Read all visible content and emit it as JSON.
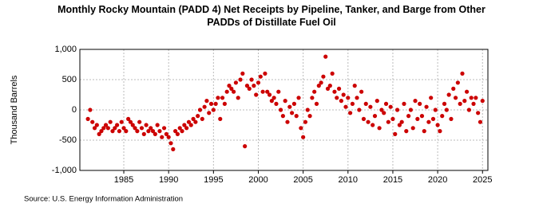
{
  "chart_data": {
    "type": "scatter",
    "title": "Monthly Rocky Mountain (PADD 4) Net Receipts by Pipeline, Tanker, and Barge from Other PADDs of Distillate Fuel Oil",
    "y_label": "Thousand Barrels",
    "source": "Source: U.S. Energy Information Administration",
    "xlim": [
      1980.1,
      2025.6
    ],
    "xticks": [
      1985,
      1990,
      1995,
      2000,
      2005,
      2010,
      2015,
      2020,
      2025
    ],
    "ylim": [
      -1000,
      1000
    ],
    "yticks": [
      {
        "value": 1000,
        "label": "1,000"
      },
      500,
      0,
      -500,
      {
        "value": -1000,
        "label": "-1,000"
      }
    ],
    "grid": true,
    "series": [
      {
        "color": "#cc0000",
        "x": [
          1981,
          1981.25,
          1981.5,
          1981.75,
          1982,
          1982.25,
          1982.5,
          1982.75,
          1983,
          1983.25,
          1983.5,
          1983.75,
          1984,
          1984.25,
          1984.5,
          1984.75,
          1985,
          1985.25,
          1985.5,
          1985.75,
          1986,
          1986.25,
          1986.5,
          1986.75,
          1987,
          1987.25,
          1987.5,
          1987.75,
          1988,
          1988.25,
          1988.5,
          1988.75,
          1989,
          1989.25,
          1989.5,
          1989.75,
          1990,
          1990.25,
          1990.5,
          1990.75,
          1991,
          1991.25,
          1991.5,
          1991.75,
          1992,
          1992.25,
          1992.5,
          1992.75,
          1993,
          1993.25,
          1993.5,
          1993.75,
          1994,
          1994.25,
          1994.5,
          1994.75,
          1995,
          1995.25,
          1995.5,
          1995.75,
          1996,
          1996.25,
          1996.5,
          1996.75,
          1997,
          1997.25,
          1997.5,
          1997.75,
          1998,
          1998.25,
          1998.5,
          1998.75,
          1999,
          1999.25,
          1999.5,
          1999.75,
          2000,
          2000.25,
          2000.5,
          2000.75,
          2001,
          2001.25,
          2001.5,
          2001.75,
          2002,
          2002.25,
          2002.5,
          2002.75,
          2003,
          2003.25,
          2003.5,
          2003.75,
          2004,
          2004.25,
          2004.5,
          2004.75,
          2005,
          2005.25,
          2005.5,
          2005.75,
          2006,
          2006.25,
          2006.5,
          2006.75,
          2007,
          2007.25,
          2007.5,
          2007.75,
          2008,
          2008.25,
          2008.5,
          2008.75,
          2009,
          2009.25,
          2009.5,
          2009.75,
          2010,
          2010.25,
          2010.5,
          2010.75,
          2011,
          2011.25,
          2011.5,
          2011.75,
          2012,
          2012.25,
          2012.5,
          2012.75,
          2013,
          2013.25,
          2013.5,
          2013.75,
          2014,
          2014.25,
          2014.5,
          2014.75,
          2015,
          2015.25,
          2015.5,
          2015.75,
          2016,
          2016.25,
          2016.5,
          2016.75,
          2017,
          2017.25,
          2017.5,
          2017.75,
          2018,
          2018.25,
          2018.5,
          2018.75,
          2019,
          2019.25,
          2019.5,
          2019.75,
          2020,
          2020.25,
          2020.5,
          2020.75,
          2021,
          2021.25,
          2021.5,
          2021.75,
          2022,
          2022.25,
          2022.5,
          2022.75,
          2023,
          2023.25,
          2023.5,
          2023.75,
          2024,
          2024.25,
          2024.5,
          2024.75,
          2025
        ],
        "values": [
          -150,
          0,
          -200,
          -300,
          -250,
          -400,
          -350,
          -300,
          -250,
          -300,
          -200,
          -350,
          -300,
          -250,
          -350,
          -200,
          -300,
          -350,
          -150,
          -200,
          -250,
          -300,
          -350,
          -200,
          -300,
          -400,
          -250,
          -350,
          -300,
          -350,
          -400,
          -250,
          -350,
          -450,
          -300,
          -400,
          -450,
          -550,
          -650,
          -350,
          -400,
          -300,
          -350,
          -250,
          -300,
          -200,
          -250,
          -150,
          -200,
          -100,
          0,
          -150,
          50,
          150,
          -50,
          100,
          0,
          100,
          200,
          -150,
          200,
          100,
          300,
          400,
          350,
          300,
          450,
          200,
          500,
          600,
          -600,
          400,
          350,
          500,
          400,
          250,
          450,
          550,
          300,
          600,
          300,
          250,
          150,
          200,
          100,
          300,
          0,
          -100,
          150,
          -200,
          50,
          -50,
          100,
          -100,
          200,
          -300,
          -450,
          -200,
          0,
          -100,
          200,
          300,
          100,
          400,
          450,
          550,
          880,
          350,
          400,
          600,
          300,
          200,
          350,
          150,
          250,
          50,
          200,
          -50,
          100,
          400,
          200,
          0,
          300,
          -150,
          100,
          -200,
          50,
          -250,
          -100,
          150,
          -300,
          0,
          -50,
          100,
          -200,
          50,
          -150,
          -400,
          0,
          -250,
          -200,
          100,
          -350,
          -100,
          0,
          -300,
          150,
          -150,
          100,
          -100,
          -350,
          50,
          -200,
          200,
          -150,
          0,
          -250,
          -350,
          -100,
          100,
          0,
          250,
          -150,
          350,
          200,
          450,
          100,
          600,
          150,
          300,
          0,
          200,
          100,
          200,
          -50,
          -200,
          150
        ]
      }
    ]
  }
}
